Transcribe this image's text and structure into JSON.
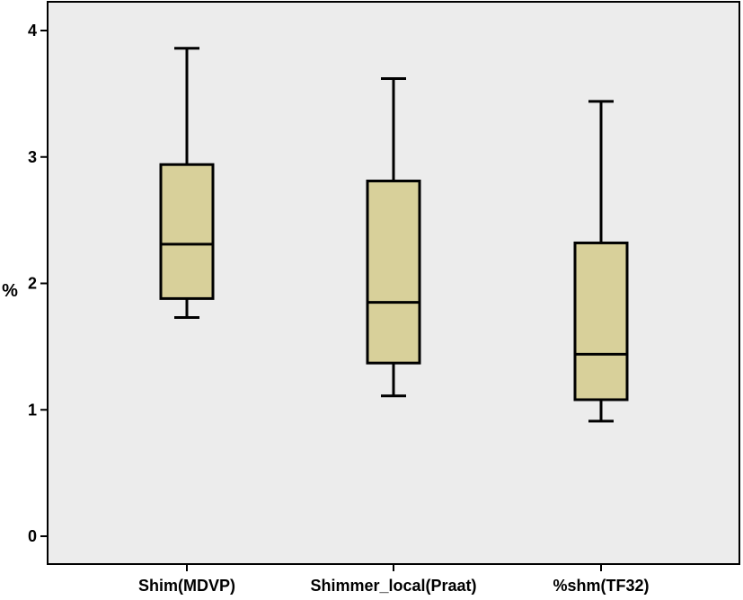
{
  "chart_data": {
    "type": "boxplot",
    "ylabel": "%",
    "xlabel": "",
    "ylim": [
      0,
      4
    ],
    "yticks": [
      0,
      1,
      2,
      3,
      4
    ],
    "grid": false,
    "legend": "none",
    "colors": {
      "box_fill": "#d8d09a",
      "box_stroke": "#000000",
      "plot_background": "#ececec"
    },
    "categories": [
      "Shim(MDVP)",
      "Shimmer_local(Praat)",
      "%shm(TF32)"
    ],
    "boxes": [
      {
        "category": "Shim(MDVP)",
        "whisker_low": 1.73,
        "q1": 1.88,
        "median": 2.31,
        "q3": 2.94,
        "whisker_high": 3.86
      },
      {
        "category": "Shimmer_local(Praat)",
        "whisker_low": 1.11,
        "q1": 1.37,
        "median": 1.85,
        "q3": 2.81,
        "whisker_high": 3.62
      },
      {
        "category": "%shm(TF32)",
        "whisker_low": 0.91,
        "q1": 1.08,
        "median": 1.44,
        "q3": 2.32,
        "whisker_high": 3.44
      }
    ]
  }
}
